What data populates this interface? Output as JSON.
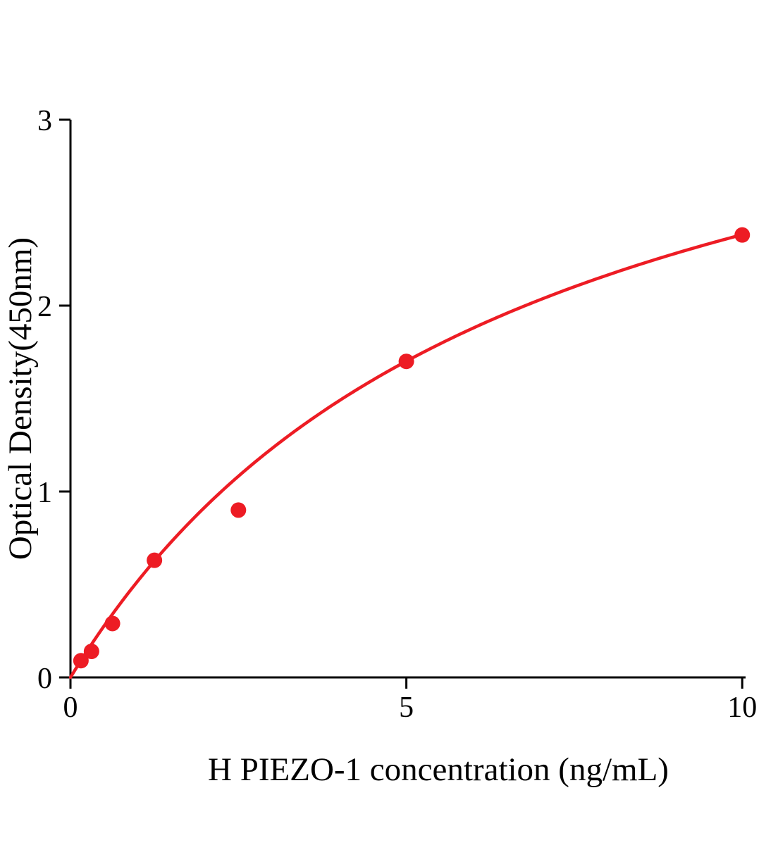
{
  "chart_data": {
    "type": "scatter",
    "title": "",
    "xlabel": "H PIEZO-1 concentration (ng/mL)",
    "ylabel": "Optical Density(450nm)",
    "x": [
      0.156,
      0.313,
      0.625,
      1.25,
      2.5,
      5,
      10
    ],
    "y": [
      0.09,
      0.14,
      0.29,
      0.63,
      0.9,
      1.7,
      2.38
    ],
    "xlim": [
      0,
      10.05
    ],
    "ylim": [
      0,
      3
    ],
    "xticks": [
      0,
      5,
      10
    ],
    "yticks": [
      0,
      1,
      2,
      3
    ],
    "grid": false,
    "legend": null,
    "point_color": "#ed1c24",
    "line_color": "#ed1c24",
    "axis_color": "#000000",
    "background_color": "#ffffff",
    "fit": {
      "type": "michaelis_menten",
      "a": 3.97,
      "b": 6.67
    }
  }
}
